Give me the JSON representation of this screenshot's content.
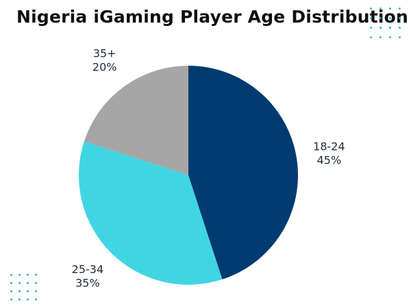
{
  "chart_data": {
    "type": "pie",
    "title": "Nigeria iGaming Player Age Distribution",
    "slices": [
      {
        "label": "18-24",
        "value": 45,
        "value_label": "45%",
        "color": "#003b6f"
      },
      {
        "label": "25-34",
        "value": 35,
        "value_label": "35%",
        "color": "#40d5e3"
      },
      {
        "label": "35+",
        "value": 20,
        "value_label": "20%",
        "color": "#a6a6a6"
      }
    ],
    "start_angle_deg": 0,
    "direction": "clockwise",
    "labels_outside": true
  },
  "decoration": {
    "dot_color": "#2fb7c4"
  }
}
